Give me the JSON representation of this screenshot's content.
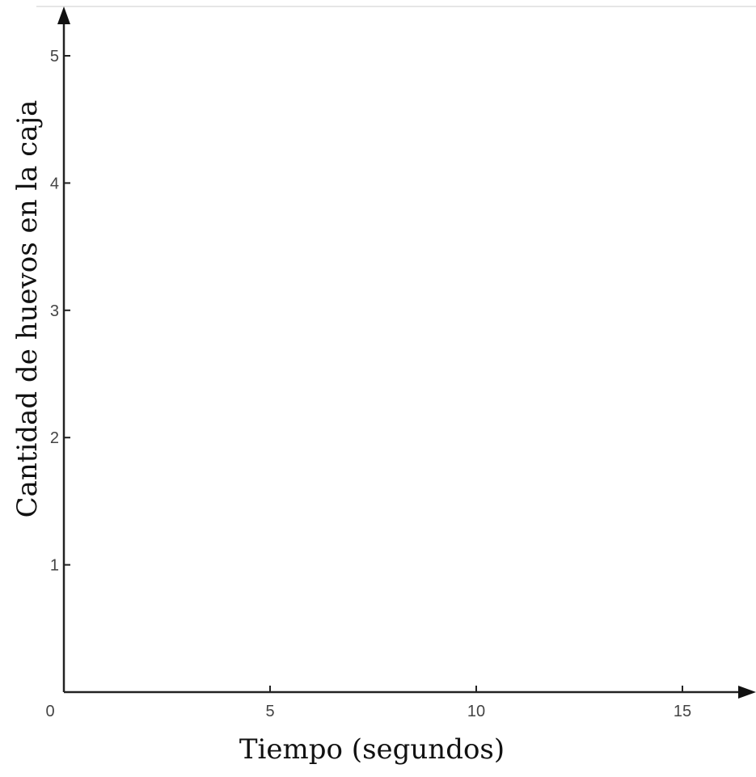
{
  "chart_data": {
    "type": "line",
    "title": "",
    "xlabel": "Tiempo (segundos)",
    "ylabel": "Cantidad de huevos en la caja",
    "origin_label": "0",
    "xlim": [
      0,
      17
    ],
    "ylim": [
      0,
      5.4
    ],
    "x_ticks": [
      5,
      10,
      15
    ],
    "y_ticks": [
      1,
      2,
      3,
      4,
      5
    ],
    "x_tick_labels": [
      "5",
      "10",
      "15"
    ],
    "y_tick_labels": [
      "1",
      "2",
      "3",
      "4",
      "5"
    ],
    "grid": false,
    "series": []
  }
}
